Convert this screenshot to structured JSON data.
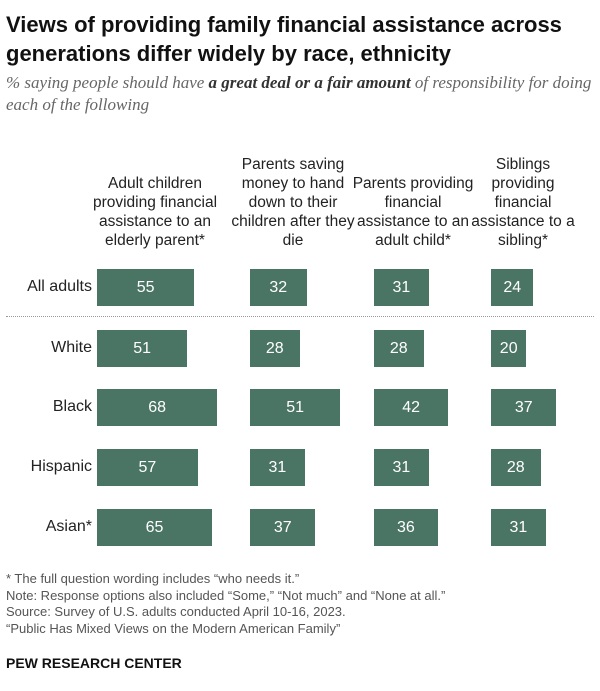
{
  "title": "Views of providing family financial assistance across generations differ widely by race, ethnicity",
  "subtitle": {
    "pre": "% saying people should have ",
    "bold": "a great deal or a fair amount",
    "post": " of responsibility for doing each of the following"
  },
  "chart_data": {
    "type": "bar",
    "columns": [
      "Adult children providing financial assistance to an elderly parent*",
      "Parents saving money to hand down to their children after they die",
      "Parents providing financial assistance to an adult child*",
      "Siblings providing financial assistance to a sibling*"
    ],
    "categories": [
      "All adults",
      "White",
      "Black",
      "Hispanic",
      "Asian*"
    ],
    "values": [
      [
        55,
        32,
        31,
        24
      ],
      [
        51,
        28,
        28,
        20
      ],
      [
        68,
        51,
        42,
        37
      ],
      [
        57,
        31,
        31,
        28
      ],
      [
        65,
        37,
        36,
        31
      ]
    ],
    "bar_color": "#4a7464"
  },
  "notes": [
    "* The full question wording includes “who needs it.”",
    "Note: Response options also included “Some,” “Not much” and “None at all.”",
    "Source: Survey of U.S. adults conducted April 10-16, 2023.",
    "“Public Has Mixed Views on the Modern American Family”"
  ],
  "brand": "PEW RESEARCH CENTER"
}
